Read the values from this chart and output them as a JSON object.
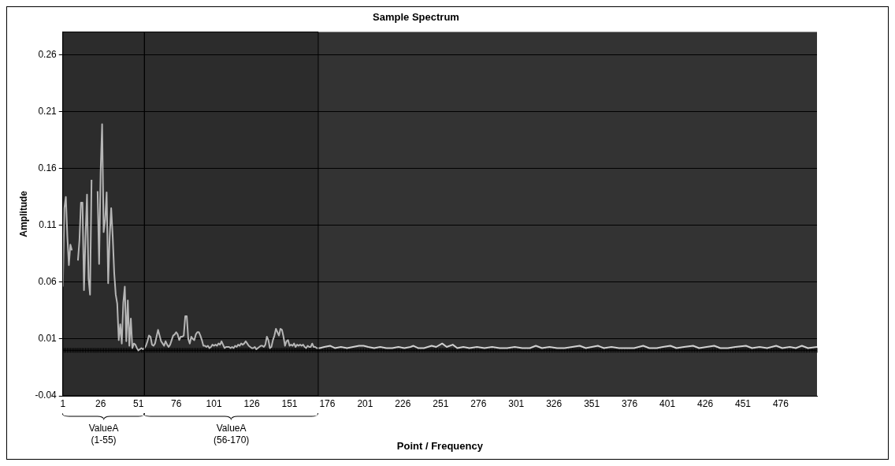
{
  "chart_data": {
    "type": "line",
    "title": "Sample Spectrum",
    "xlabel": "Point / Frequency",
    "ylabel": "Amplitude",
    "xlim": [
      1,
      500
    ],
    "xticks": [
      1,
      26,
      51,
      76,
      101,
      126,
      151,
      176,
      201,
      226,
      251,
      276,
      301,
      326,
      351,
      376,
      401,
      426,
      451,
      476
    ],
    "ylim": [
      -0.04,
      0.28
    ],
    "yticks": [
      -0.04,
      0.01,
      0.06,
      0.11,
      0.16,
      0.21,
      0.26
    ],
    "grid": "y",
    "legend": false,
    "marker": "none",
    "line_style": "solid",
    "bands": [
      {
        "axis": "x",
        "from": 1,
        "to": 55,
        "label": "ValueA\n(1-55)",
        "color": "#000000"
      },
      {
        "axis": "x",
        "from": 55,
        "to": 170,
        "label": "ValueA\n(56-170)",
        "color": "#000000"
      }
    ],
    "series": [
      {
        "color": "#d0d0d0",
        "x": [
          1,
          2,
          3,
          4,
          5,
          6,
          7,
          8,
          9,
          10,
          11,
          12,
          13,
          14,
          15,
          16,
          17,
          18,
          19,
          20,
          21,
          22,
          23,
          24,
          25,
          26,
          27,
          28,
          29,
          30,
          31,
          32,
          33,
          34,
          35,
          36,
          37,
          38,
          39,
          40,
          41,
          42,
          43,
          44,
          45,
          46,
          47,
          48,
          49,
          50,
          51,
          52,
          53,
          54,
          55,
          56,
          57,
          58,
          59,
          60,
          61,
          62,
          63,
          64,
          65,
          66,
          67,
          68,
          69,
          70,
          71,
          72,
          73,
          74,
          75,
          76,
          77,
          78,
          79,
          80,
          81,
          82,
          83,
          84,
          85,
          86,
          87,
          88,
          89,
          90,
          91,
          92,
          93,
          94,
          95,
          96,
          97,
          98,
          99,
          100,
          101,
          102,
          103,
          104,
          105,
          106,
          107,
          108,
          109,
          110,
          111,
          112,
          113,
          114,
          115,
          116,
          117,
          118,
          119,
          120,
          121,
          122,
          123,
          124,
          125,
          126,
          127,
          128,
          129,
          130,
          131,
          132,
          133,
          134,
          135,
          136,
          137,
          138,
          139,
          140,
          141,
          142,
          143,
          144,
          145,
          146,
          147,
          148,
          149,
          150,
          151,
          152,
          153,
          154,
          155,
          156,
          157,
          158,
          159,
          160,
          161,
          162,
          163,
          164,
          165,
          166,
          167,
          168,
          169,
          170,
          171,
          174,
          178,
          181,
          185,
          189,
          193,
          197,
          200,
          203,
          207,
          211,
          215,
          219,
          223,
          227,
          231,
          233,
          236,
          240,
          245,
          248,
          252,
          255,
          259,
          262,
          266,
          270,
          275,
          280,
          285,
          290,
          295,
          300,
          305,
          310,
          314,
          318,
          323,
          328,
          333,
          338,
          343,
          347,
          351,
          355,
          359,
          364,
          369,
          374,
          379,
          385,
          389,
          394,
          398,
          403,
          407,
          412,
          418,
          422,
          427,
          432,
          436,
          441,
          446,
          453,
          457,
          462,
          467,
          473,
          477,
          482,
          486,
          490,
          494,
          500
        ],
        "values": [
          0.056,
          0.125,
          0.135,
          0.1,
          0.075,
          0.093,
          0.088,
          null,
          null,
          null,
          0.079,
          0.097,
          0.13,
          0.13,
          0.053,
          0.1,
          0.137,
          0.063,
          0.049,
          0.15,
          null,
          null,
          null,
          0.14,
          0.076,
          0.157,
          0.199,
          0.104,
          0.115,
          0.139,
          0.059,
          0.1,
          0.125,
          0.1,
          0.068,
          0.049,
          0.041,
          0.009,
          0.023,
          0.006,
          0.042,
          0.056,
          0.008,
          0.044,
          0.004,
          0.028,
          0.002,
          0.006,
          0.005,
          0.002,
          0.0,
          0.001,
          0.002,
          0.001,
          0.002,
          0.004,
          0.008,
          0.013,
          0.012,
          0.005,
          0.004,
          0.006,
          0.012,
          0.018,
          0.013,
          0.008,
          0.006,
          0.004,
          0.008,
          0.005,
          0.003,
          0.005,
          0.009,
          0.013,
          0.014,
          0.016,
          0.014,
          0.009,
          0.012,
          0.012,
          0.013,
          0.03,
          0.03,
          0.01,
          0.006,
          0.012,
          0.01,
          0.009,
          0.014,
          0.016,
          0.016,
          0.013,
          0.009,
          0.004,
          0.004,
          0.003,
          0.004,
          0.002,
          0.003,
          0.005,
          0.004,
          0.005,
          0.004,
          0.006,
          0.005,
          0.008,
          0.005,
          0.002,
          0.003,
          0.003,
          0.003,
          0.002,
          0.003,
          0.002,
          0.004,
          0.003,
          0.005,
          0.004,
          0.006,
          0.005,
          0.006,
          0.008,
          0.006,
          0.004,
          0.003,
          0.002,
          0.002,
          0.003,
          0.001,
          0.002,
          0.003,
          0.004,
          0.004,
          0.003,
          0.005,
          0.012,
          0.009,
          0.002,
          0.003,
          0.009,
          0.013,
          0.019,
          0.016,
          0.013,
          0.019,
          0.018,
          0.012,
          0.004,
          0.008,
          0.009,
          0.004,
          0.005,
          0.004,
          0.006,
          0.003,
          0.005,
          0.004,
          0.005,
          0.004,
          0.005,
          0.003,
          0.002,
          0.004,
          0.003,
          0.003,
          0.006,
          0.003,
          0.003,
          0.002,
          0.002,
          0.002,
          0.003,
          0.004,
          0.002,
          0.003,
          0.002,
          0.003,
          0.004,
          0.004,
          0.003,
          0.002,
          0.003,
          0.002,
          0.002,
          0.003,
          0.002,
          0.003,
          0.004,
          0.002,
          0.002,
          0.004,
          0.003,
          0.006,
          0.003,
          0.005,
          0.002,
          0.003,
          0.002,
          0.003,
          0.002,
          0.003,
          0.002,
          0.002,
          0.003,
          0.002,
          0.002,
          0.004,
          0.002,
          0.003,
          0.002,
          0.002,
          0.003,
          0.004,
          0.002,
          0.003,
          0.004,
          0.002,
          0.003,
          0.002,
          0.002,
          0.002,
          0.004,
          0.002,
          0.002,
          0.003,
          0.004,
          0.002,
          0.003,
          0.004,
          0.002,
          0.003,
          0.004,
          0.002,
          0.002,
          0.003,
          0.004,
          0.002,
          0.003,
          0.002,
          0.004,
          0.002,
          0.003,
          0.002,
          0.004,
          0.002,
          0.003
        ]
      }
    ]
  }
}
